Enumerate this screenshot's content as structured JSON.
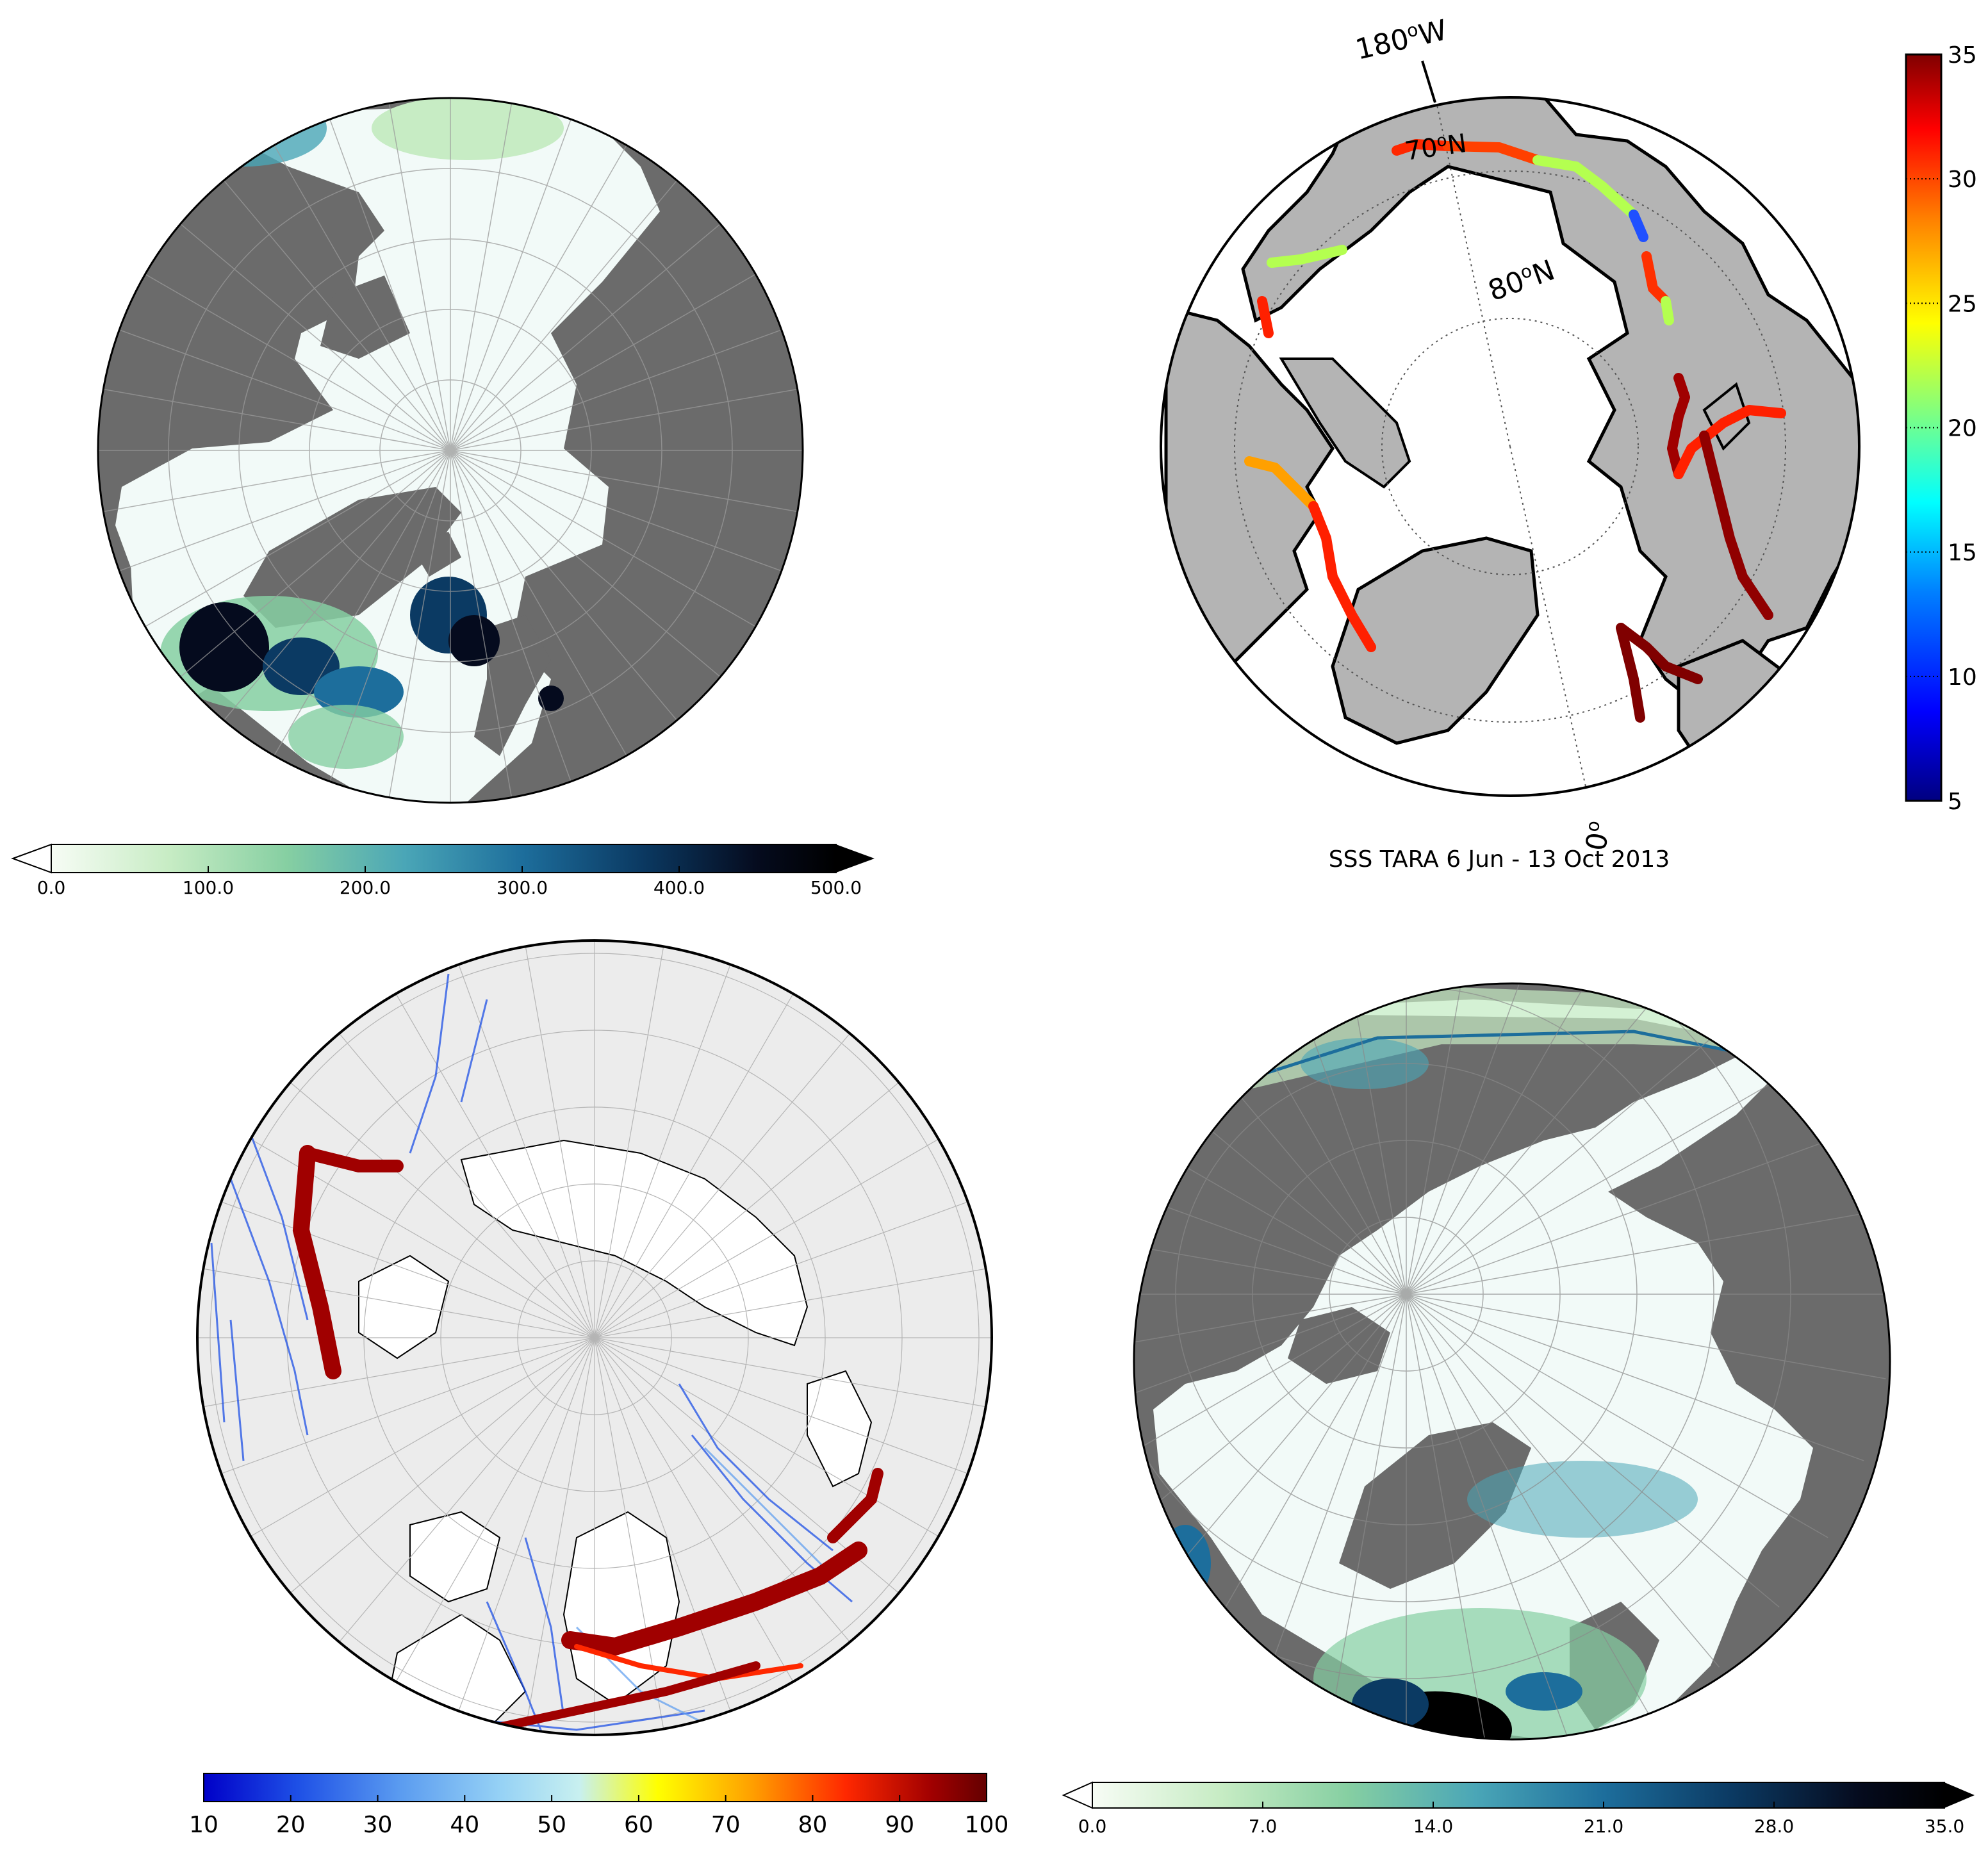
{
  "panels": {
    "top_left": {
      "colorbar": {
        "ticks": [
          "0.0",
          "100.0",
          "200.0",
          "300.0",
          "400.0",
          "500.0"
        ],
        "extend_min_arrow": "open",
        "extend_max_arrow": "filled",
        "colors": [
          "#f7fcf5",
          "#c7ecc4",
          "#86cfa2",
          "#4aa6b7",
          "#1d6e9c",
          "#0b3a63",
          "#050b1e",
          "#000000"
        ]
      }
    },
    "top_right": {
      "title": "SSS TARA 6 Jun - 13 Oct 2013",
      "lon_labels": [
        "180",
        "W",
        "0"
      ],
      "lat_labels": [
        "70",
        "N",
        "80",
        "N"
      ],
      "degree_symbol": "o",
      "colorbar": {
        "ticks": [
          "35",
          "30",
          "25",
          "20",
          "15",
          "10",
          "5"
        ],
        "colors": [
          "#000080",
          "#0000ff",
          "#0080ff",
          "#00ffff",
          "#80ff80",
          "#ffff00",
          "#ff8000",
          "#ff0000",
          "#800000"
        ]
      }
    },
    "bottom_left": {
      "colorbar": {
        "ticks": [
          "10",
          "20",
          "30",
          "40",
          "50",
          "60",
          "70",
          "80",
          "90",
          "100"
        ],
        "colors": [
          "#0000c8",
          "#1e50e6",
          "#5a9bf0",
          "#96d2f5",
          "#c8f0f0",
          "#ffff00",
          "#ffa000",
          "#ff2800",
          "#a00000",
          "#640000"
        ]
      }
    },
    "bottom_right": {
      "colorbar": {
        "ticks": [
          "0.0",
          "7.0",
          "14.0",
          "21.0",
          "28.0",
          "35.0"
        ],
        "extend_min_arrow": "open",
        "extend_max_arrow": "filled",
        "colors": [
          "#f7fcf5",
          "#c7ecc4",
          "#86cfa2",
          "#4aa6b7",
          "#1d6e9c",
          "#0b3a63",
          "#050b1e",
          "#000000"
        ]
      }
    }
  },
  "style": {
    "land_dark": "#6b6b6b",
    "land_light": "#b4b4b4",
    "ocean_light": "#f2faf8",
    "ocean_grey": "#ececec"
  }
}
